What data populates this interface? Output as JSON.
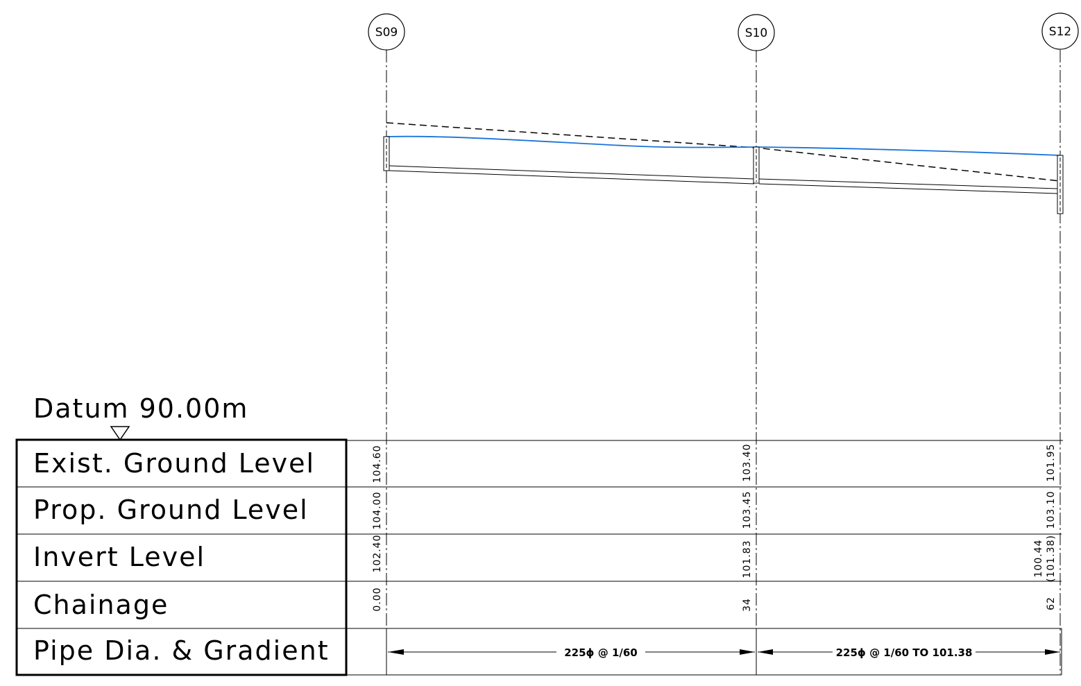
{
  "datum": {
    "label": "Datum 90.00m"
  },
  "rows": [
    {
      "label": "Exist. Ground Level"
    },
    {
      "label": "Prop. Ground Level"
    },
    {
      "label": "Invert Level"
    },
    {
      "label": "Chainage"
    },
    {
      "label": "Pipe Dia. & Gradient"
    }
  ],
  "manholes": [
    {
      "id": "S09",
      "existing_ground": "104.60",
      "proposed_ground": "104.00",
      "invert": "102.40",
      "invert_secondary": "",
      "chainage": "0.00"
    },
    {
      "id": "S10",
      "existing_ground": "103.40",
      "proposed_ground": "103.45",
      "invert": "101.83",
      "invert_secondary": "",
      "chainage": "34"
    },
    {
      "id": "S12",
      "existing_ground": "101.95",
      "proposed_ground": "103.10",
      "invert": "100.44",
      "invert_secondary": "(101.38)",
      "chainage": "62"
    }
  ],
  "pipes": [
    {
      "from": "S09",
      "to": "S10",
      "label": "225ϕ @ 1/60"
    },
    {
      "from": "S10",
      "to": "S12",
      "label": "225ϕ @ 1/60 TO 101.38"
    }
  ],
  "colors": {
    "line": "#000000",
    "existing_ground_line": "#1a73d9"
  }
}
